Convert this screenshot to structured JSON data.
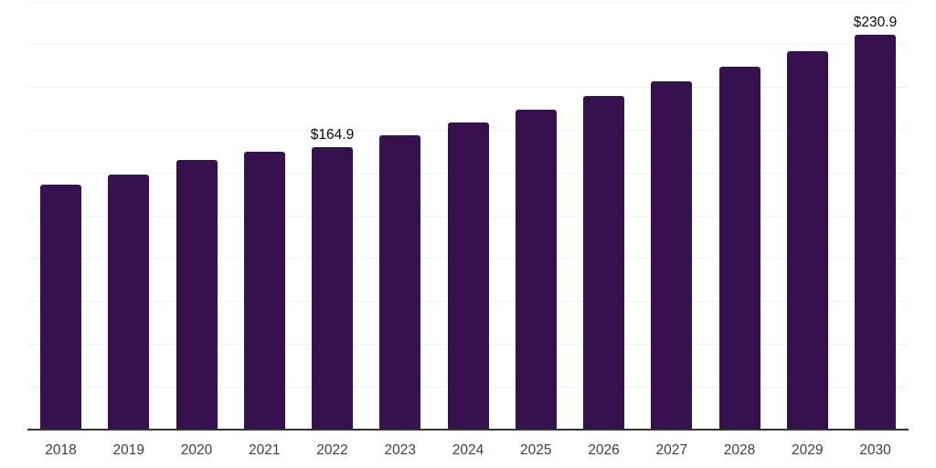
{
  "chart_data": {
    "type": "bar",
    "categories": [
      "2018",
      "2019",
      "2020",
      "2021",
      "2022",
      "2023",
      "2024",
      "2025",
      "2026",
      "2027",
      "2028",
      "2029",
      "2030"
    ],
    "values": [
      143.4,
      149.3,
      157.5,
      162.6,
      164.9,
      172.0,
      179.4,
      187.1,
      195.1,
      203.5,
      212.3,
      221.4,
      230.9
    ],
    "data_labels": [
      {
        "category": "2022",
        "text": "$164.9"
      },
      {
        "category": "2030",
        "text": "$230.9"
      }
    ],
    "ylim": [
      0,
      250
    ],
    "grid": "horizontal",
    "gridline_step": 25,
    "legend": "none",
    "y_axis_tick_labels_visible": false
  },
  "colors": {
    "bar": "#36114d",
    "axis_line": "#333333",
    "gridline": "#f1f1f1",
    "value_label": "#0b0b0b",
    "tick_label": "#3f3f3f",
    "background": "#ffffff"
  }
}
